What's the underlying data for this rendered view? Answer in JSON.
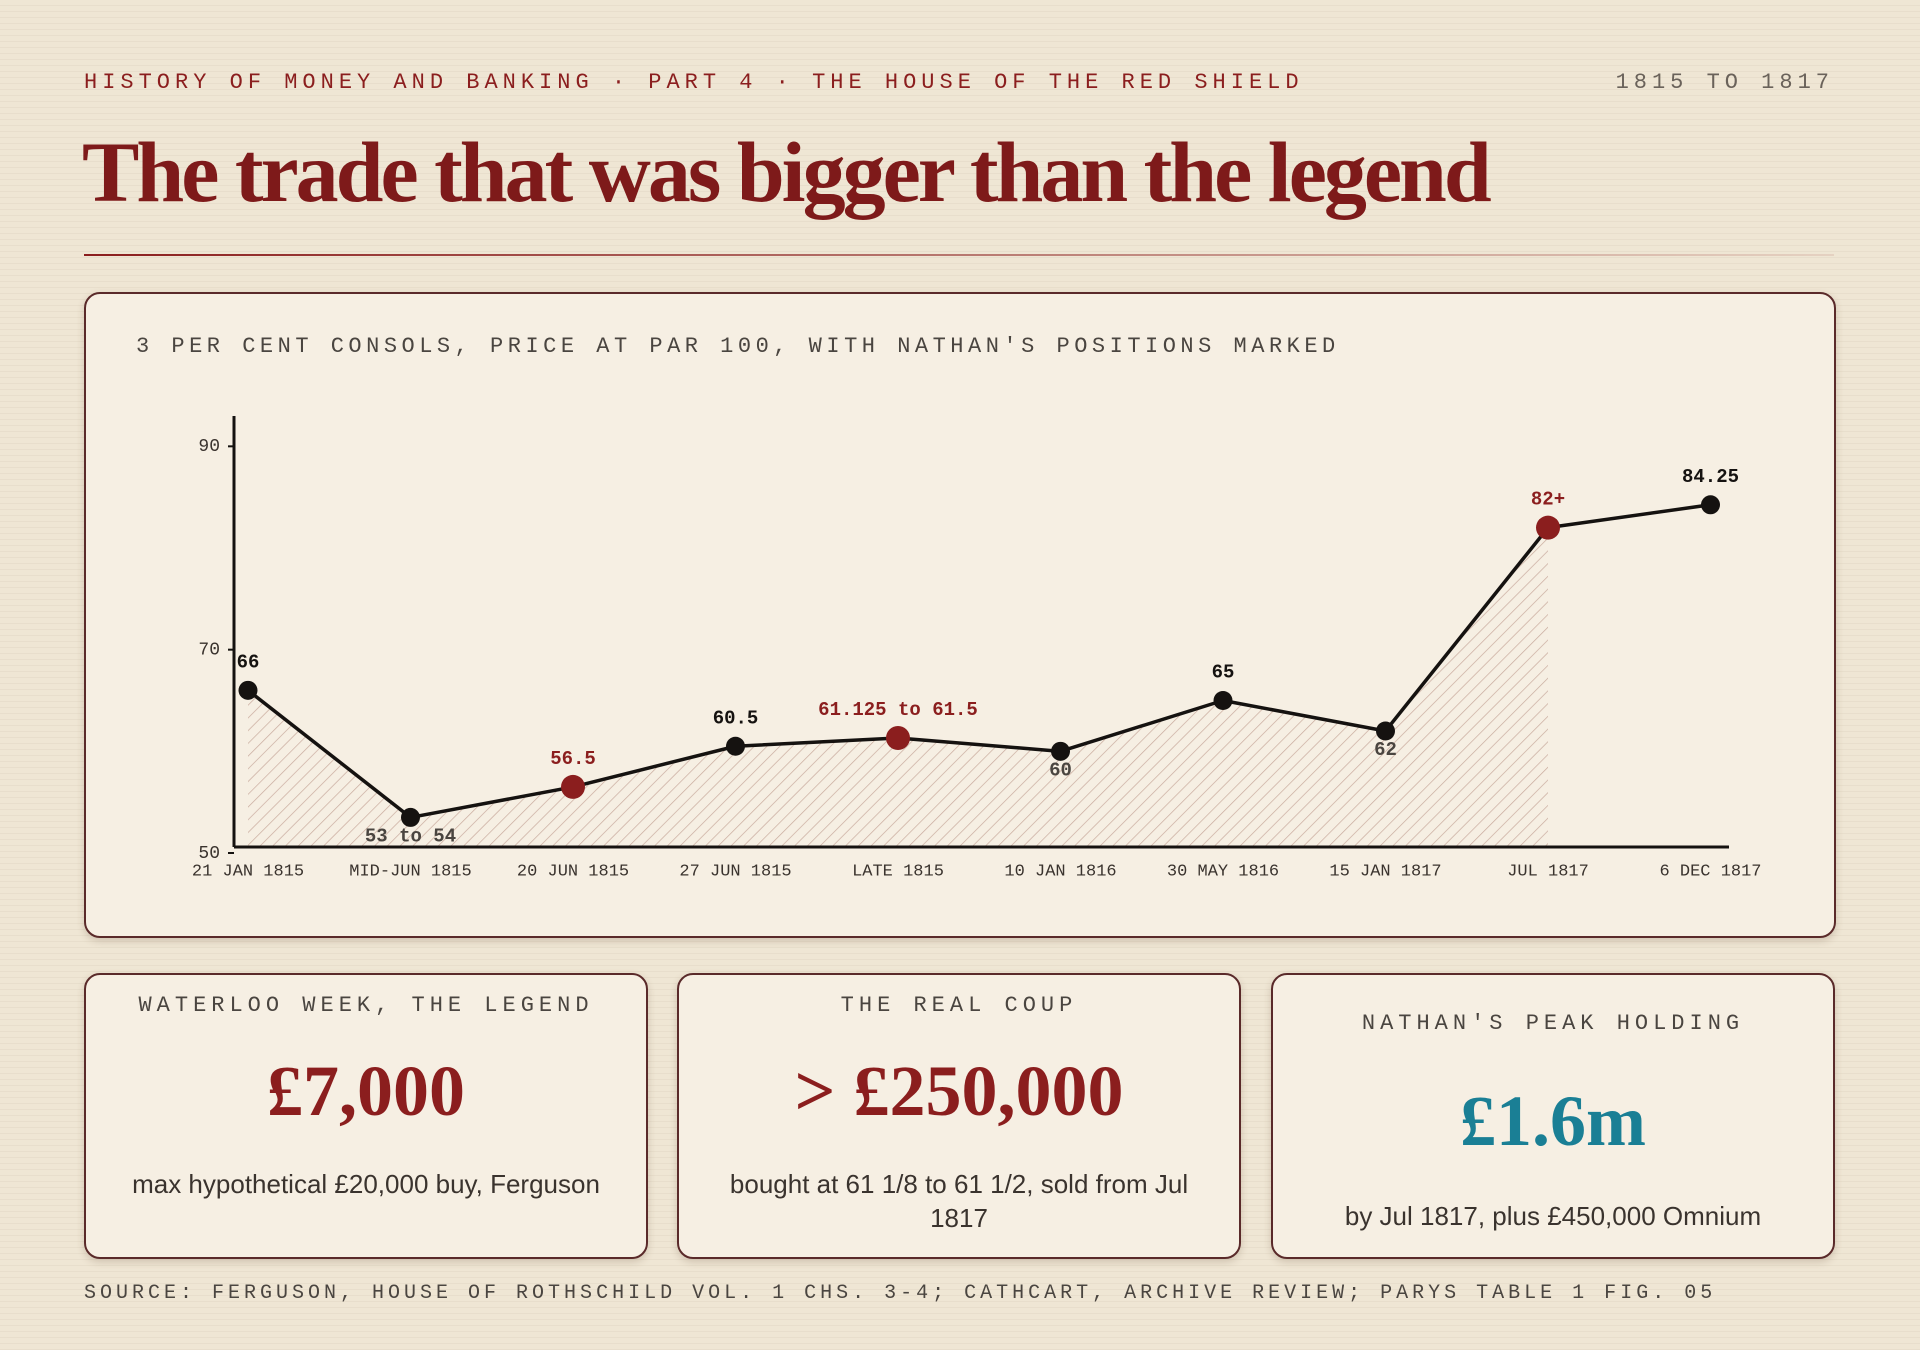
{
  "header": {
    "kicker": "HISTORY OF MONEY AND BANKING · PART 4 · THE HOUSE OF THE RED SHIELD",
    "date_range": "1815 TO 1817",
    "title": "The trade that was bigger than the legend"
  },
  "chart_data": {
    "type": "line",
    "title": "3 PER CENT CONSOLS, PRICE AT PAR 100, WITH NATHAN'S POSITIONS MARKED",
    "categories": [
      "21 JAN 1815",
      "MID-JUN 1815",
      "20 JUN 1815",
      "27 JUN 1815",
      "LATE 1815",
      "10 JAN 1816",
      "30 MAY 1816",
      "15 JAN 1817",
      "JUL 1817",
      "6 DEC 1817"
    ],
    "values": [
      66,
      53.5,
      56.5,
      60.5,
      61.3125,
      60,
      65,
      62,
      82,
      84.25
    ],
    "value_labels": [
      "66",
      "53 to 54",
      "56.5",
      "60.5",
      "61.125 to 61.5",
      "60",
      "65",
      "62",
      "82+",
      "84.25"
    ],
    "color": "#151210",
    "marker_colors": [
      "#151210",
      "#151210",
      "#8b1e1e",
      "#151210",
      "#8b1e1e",
      "#151210",
      "#151210",
      "#151210",
      "#8b1e1e",
      "#151210"
    ],
    "ylim": [
      50,
      92
    ],
    "yticks": [
      50,
      70,
      90
    ]
  },
  "stats": [
    {
      "label": "WATERLOO WEEK, THE LEGEND",
      "value": "£7,000",
      "note": "max hypothetical £20,000 buy, Ferguson",
      "color": "#8b1e1e"
    },
    {
      "label": "THE REAL COUP",
      "value": "> £250,000",
      "note": "bought at 61 1/8 to 61 1/2, sold from Jul 1817",
      "color": "#8b1e1e"
    },
    {
      "label": "NATHAN'S PEAK HOLDING",
      "value": "£1.6m",
      "note": "by Jul 1817, plus £450,000 Omnium",
      "color": "#1a7f95"
    }
  ],
  "source": "SOURCE: FERGUSON, HOUSE OF ROTHSCHILD VOL. 1 CHS. 3-4; CATHCART, ARCHIVE REVIEW; PARYS TABLE 1 FIG. 05"
}
